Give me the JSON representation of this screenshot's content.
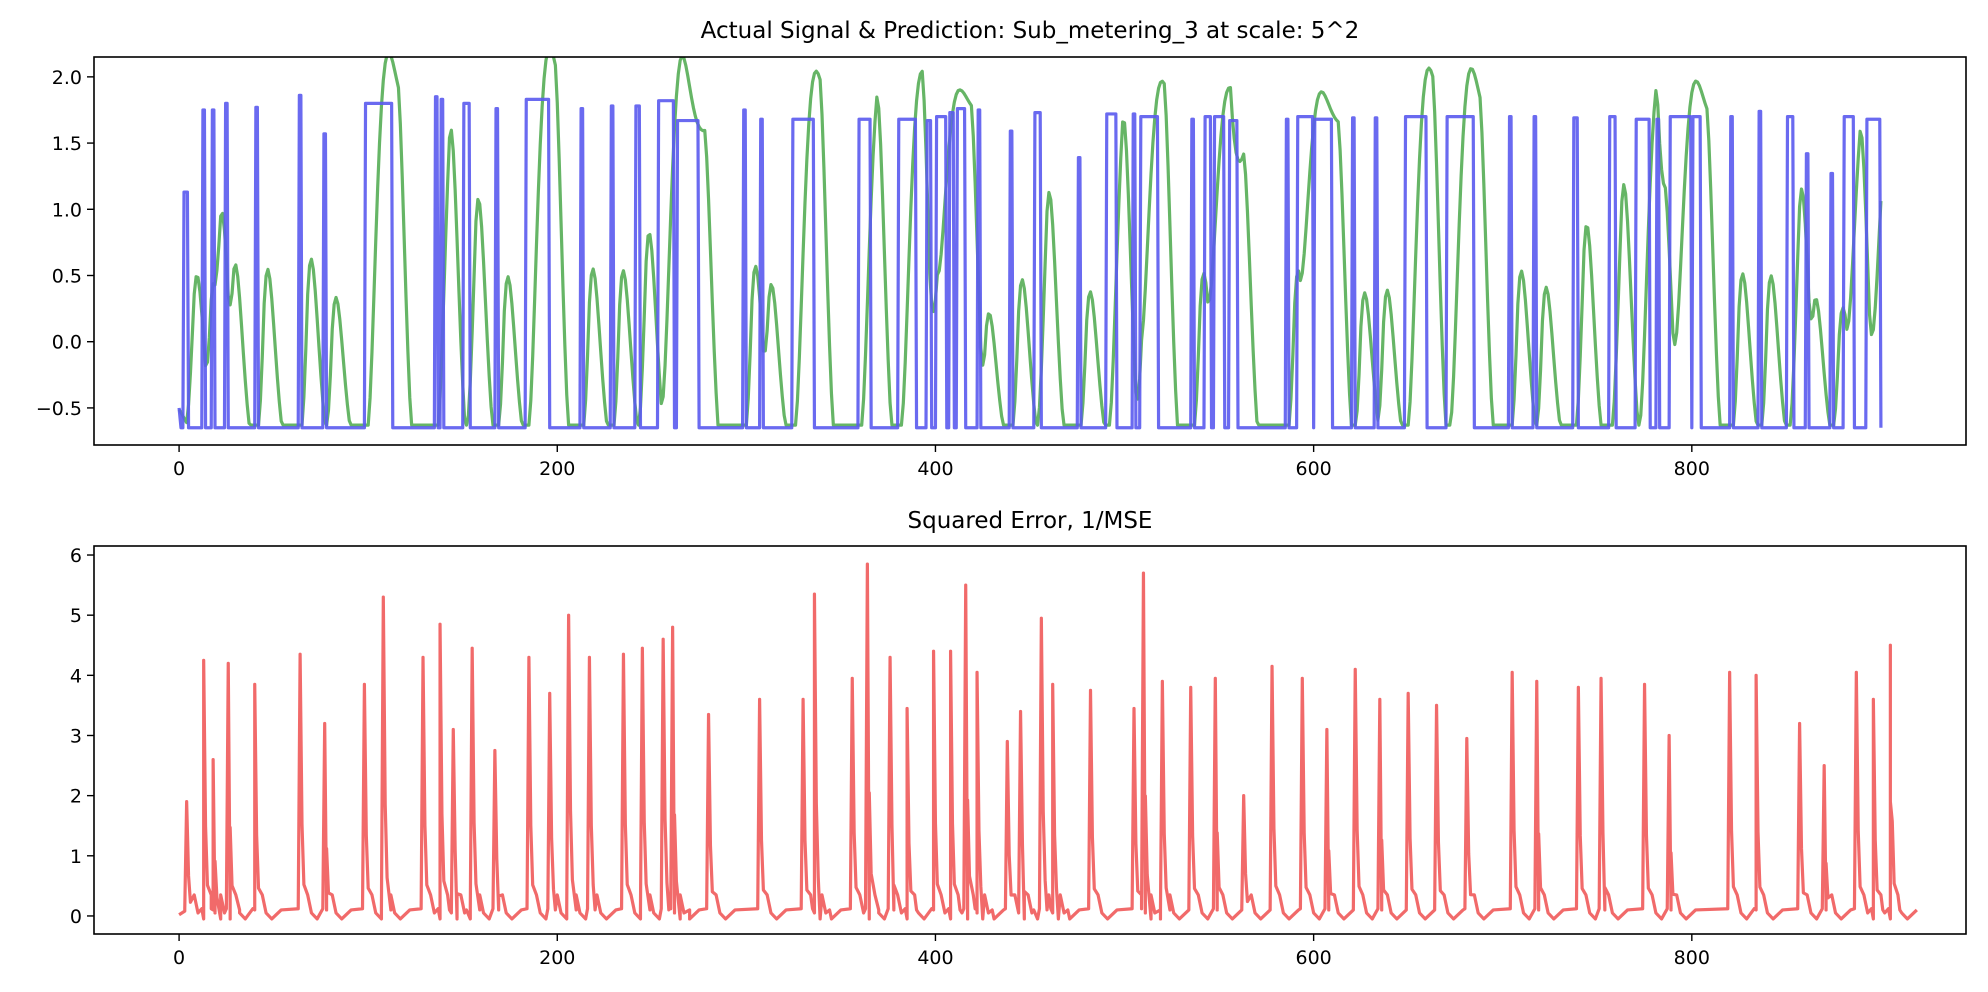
{
  "chart_data": [
    {
      "type": "line",
      "title": "Actual Signal & Prediction: Sub_metering_3 at scale: 5^2",
      "xlabel": "",
      "ylabel": "",
      "xlim": [
        -45,
        945
      ],
      "ylim": [
        -0.78,
        2.15
      ],
      "grid": false,
      "legend": "none",
      "x_ticks": [
        0,
        200,
        400,
        600,
        800
      ],
      "x_tick_labels": [
        "0",
        "200",
        "400",
        "600",
        "800"
      ],
      "y_ticks": [
        -0.5,
        0.0,
        0.5,
        1.0,
        1.5,
        2.0
      ],
      "y_tick_labels": [
        "−0.5",
        "0.0",
        "0.5",
        "1.0",
        "1.5",
        "2.0"
      ],
      "series": [
        {
          "color": "#5a5aee",
          "style": "square-pulses",
          "base": -0.65,
          "pulses": [
            [
              2,
              5,
              1.13
            ],
            [
              12,
              14,
              1.75
            ],
            [
              17,
              19,
              1.75
            ],
            [
              24,
              26,
              1.8
            ],
            [
              40,
              42,
              1.77
            ],
            [
              63,
              65,
              1.86
            ],
            [
              76,
              78,
              1.57
            ],
            [
              98,
              113,
              1.8
            ],
            [
              135,
              137,
              1.85
            ],
            [
              138,
              140,
              1.83
            ],
            [
              150,
              154,
              1.8
            ],
            [
              167,
              169,
              1.76
            ],
            [
              183,
              196,
              1.83
            ],
            [
              212,
              214,
              1.76
            ],
            [
              228,
              230,
              1.78
            ],
            [
              241,
              244,
              1.78
            ],
            [
              253,
              262,
              1.82
            ],
            [
              263,
              275,
              1.67
            ],
            [
              298,
              300,
              1.75
            ],
            [
              307,
              309,
              1.68
            ],
            [
              324,
              336,
              1.68
            ],
            [
              359,
              366,
              1.68
            ],
            [
              380,
              390,
              1.68
            ],
            [
              395,
              398,
              1.67
            ],
            [
              400,
              406,
              1.7
            ],
            [
              407,
              410,
              1.73
            ],
            [
              411,
              416,
              1.76
            ],
            [
              422,
              424,
              1.75
            ],
            [
              439,
              441,
              1.59
            ],
            [
              452,
              456,
              1.73
            ],
            [
              475,
              477,
              1.39
            ],
            [
              490,
              496,
              1.72
            ],
            [
              504,
              506,
              1.72
            ],
            [
              508,
              518,
              1.7
            ],
            [
              535,
              537,
              1.68
            ],
            [
              542,
              546,
              1.7
            ],
            [
              547,
              553,
              1.7
            ],
            [
              555,
              560,
              1.67
            ],
            [
              585,
              587,
              1.68
            ],
            [
              591,
              600,
              1.7
            ],
            [
              600,
              610,
              1.68
            ],
            [
              620,
              622,
              1.69
            ],
            [
              632,
              634,
              1.69
            ],
            [
              648,
              660,
              1.7
            ],
            [
              670,
              685,
              1.7
            ],
            [
              703,
              705,
              1.7
            ],
            [
              716,
              718,
              1.7
            ],
            [
              737,
              740,
              1.69
            ],
            [
              756,
              760,
              1.7
            ],
            [
              770,
              778,
              1.68
            ],
            [
              781,
              783,
              1.68
            ],
            [
              788,
              800,
              1.7
            ],
            [
              800,
              805,
              1.7
            ],
            [
              820,
              822,
              1.7
            ],
            [
              835,
              837,
              1.74
            ],
            [
              850,
              854,
              1.7
            ],
            [
              860,
              862,
              1.42
            ],
            [
              873,
              875,
              1.27
            ],
            [
              880,
              886,
              1.7
            ],
            [
              892,
              900,
              1.68
            ]
          ]
        },
        {
          "color": "#55ad55",
          "style": "smoothed-prediction"
        }
      ]
    },
    {
      "type": "line",
      "title": "Squared Error, 1/MSE",
      "xlabel": "",
      "ylabel": "",
      "xlim": [
        -45,
        945
      ],
      "ylim": [
        -0.3,
        6.15
      ],
      "grid": false,
      "legend": "none",
      "x_ticks": [
        0,
        200,
        400,
        600,
        800
      ],
      "x_tick_labels": [
        "0",
        "200",
        "400",
        "600",
        "800"
      ],
      "y_ticks": [
        0,
        1,
        2,
        3,
        4,
        5,
        6
      ],
      "y_tick_labels": [
        "0",
        "1",
        "2",
        "3",
        "4",
        "5",
        "6"
      ],
      "series": [
        {
          "color": "#f05a5a",
          "style": "error-spikes",
          "spikes": [
            [
              4,
              1.9
            ],
            [
              13,
              4.25
            ],
            [
              18,
              2.6
            ],
            [
              26,
              4.2
            ],
            [
              40,
              3.85
            ],
            [
              64,
              4.35
            ],
            [
              77,
              3.2
            ],
            [
              98,
              3.85
            ],
            [
              108,
              5.3
            ],
            [
              129,
              4.3
            ],
            [
              138,
              4.85
            ],
            [
              145,
              3.1
            ],
            [
              155,
              4.45
            ],
            [
              167,
              2.75
            ],
            [
              185,
              4.3
            ],
            [
              196,
              3.7
            ],
            [
              206,
              5.0
            ],
            [
              217,
              4.3
            ],
            [
              235,
              4.35
            ],
            [
              245,
              4.45
            ],
            [
              256,
              4.6
            ],
            [
              261,
              4.8
            ],
            [
              280,
              3.35
            ],
            [
              307,
              3.6
            ],
            [
              330,
              3.6
            ],
            [
              336,
              5.35
            ],
            [
              356,
              3.95
            ],
            [
              364,
              5.85
            ],
            [
              376,
              4.3
            ],
            [
              385,
              3.45
            ],
            [
              399,
              4.4
            ],
            [
              408,
              4.4
            ],
            [
              416,
              5.5
            ],
            [
              422,
              4.05
            ],
            [
              438,
              2.9
            ],
            [
              445,
              3.4
            ],
            [
              456,
              4.95
            ],
            [
              462,
              3.85
            ],
            [
              482,
              3.75
            ],
            [
              505,
              3.45
            ],
            [
              510,
              5.7
            ],
            [
              520,
              3.9
            ],
            [
              535,
              3.8
            ],
            [
              548,
              3.95
            ],
            [
              563,
              2.0
            ],
            [
              578,
              4.15
            ],
            [
              594,
              3.95
            ],
            [
              607,
              3.1
            ],
            [
              622,
              4.1
            ],
            [
              635,
              3.6
            ],
            [
              650,
              3.7
            ],
            [
              665,
              3.5
            ],
            [
              681,
              2.95
            ],
            [
              705,
              4.05
            ],
            [
              718,
              3.9
            ],
            [
              740,
              3.8
            ],
            [
              752,
              3.95
            ],
            [
              775,
              3.85
            ],
            [
              788,
              3.0
            ],
            [
              820,
              4.05
            ],
            [
              834,
              4.0
            ],
            [
              857,
              3.2
            ],
            [
              870,
              2.5
            ],
            [
              887,
              4.05
            ],
            [
              896,
              3.6
            ],
            [
              905,
              4.5
            ]
          ]
        }
      ]
    }
  ]
}
